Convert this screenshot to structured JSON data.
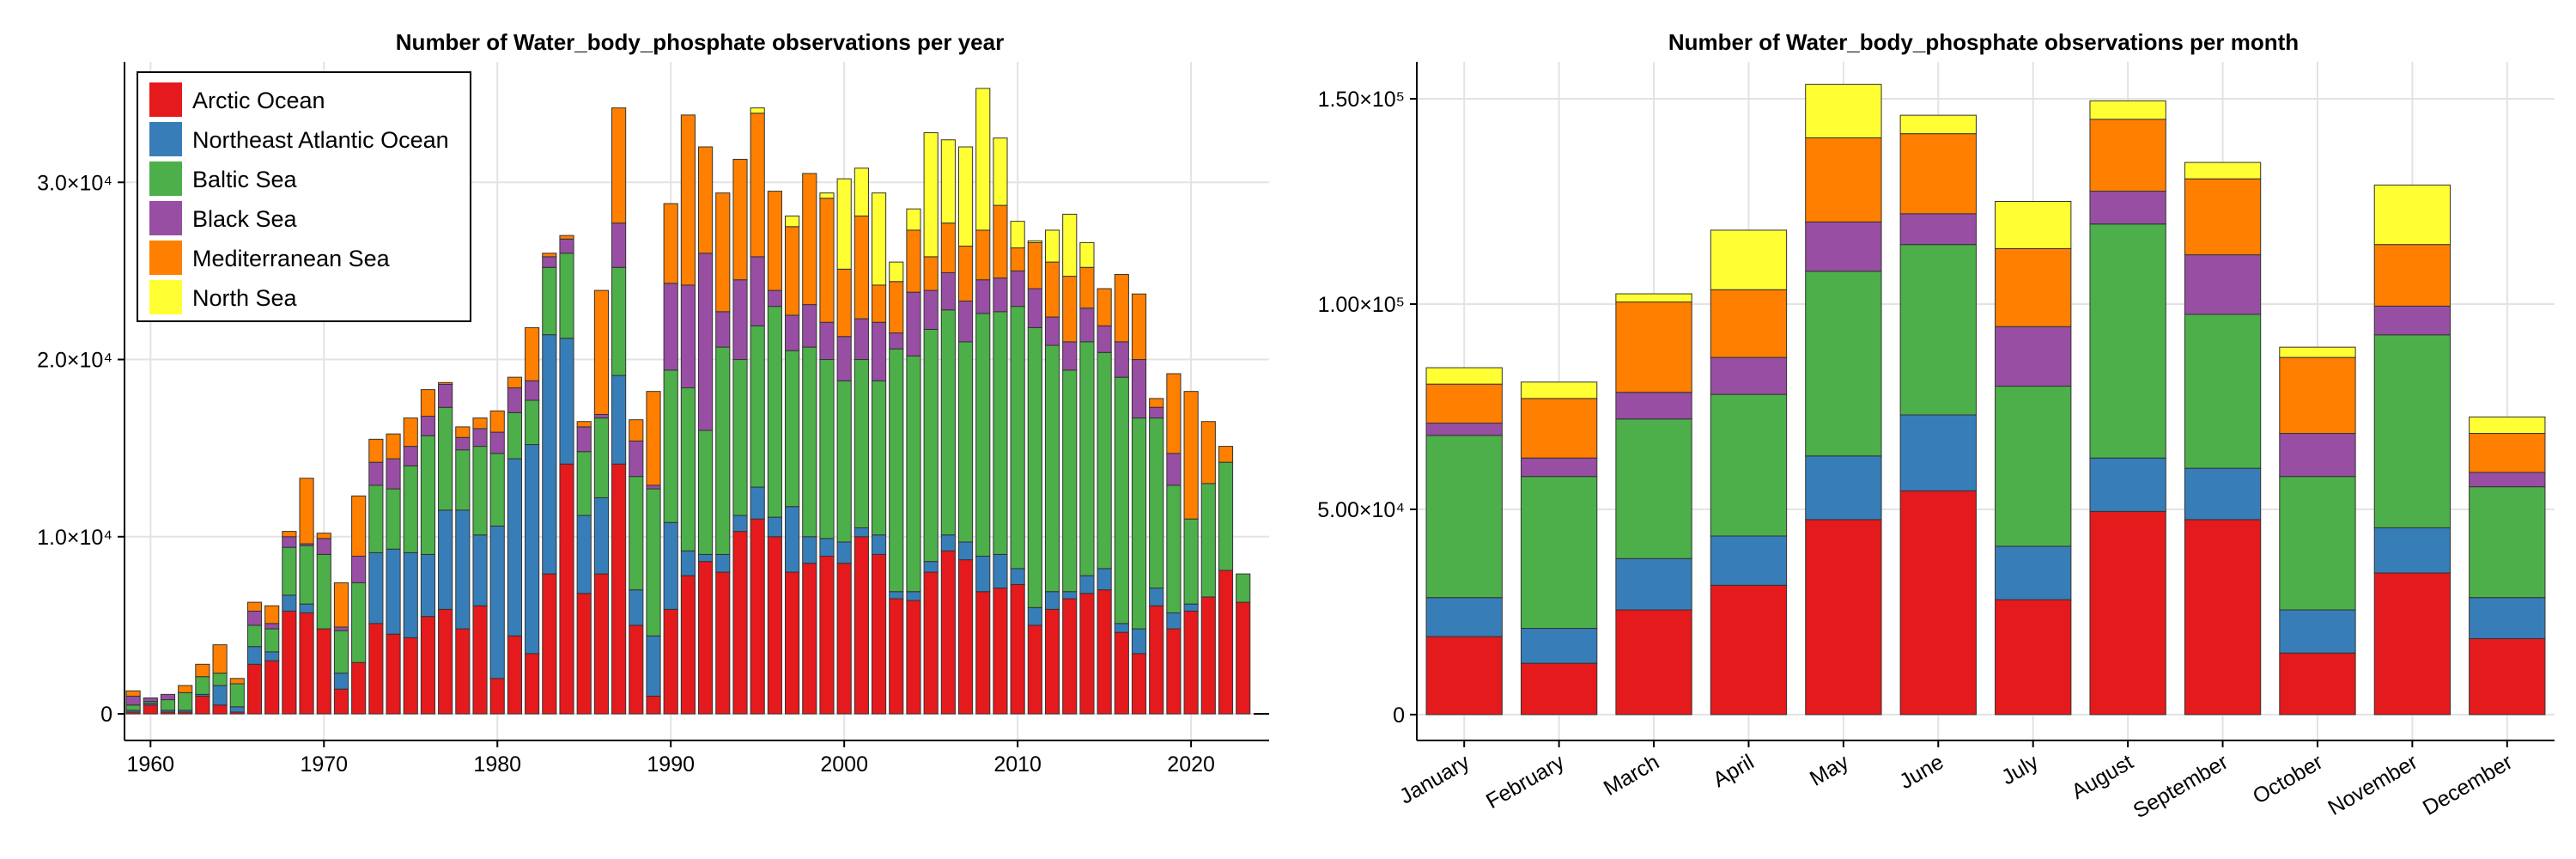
{
  "chart_data": [
    {
      "type": "bar",
      "stacked": true,
      "title": "Number of Water_body_phosphate observations per year",
      "xlabel": "",
      "ylabel": "",
      "x": [
        1959,
        1960,
        1961,
        1962,
        1963,
        1964,
        1965,
        1966,
        1967,
        1968,
        1969,
        1970,
        1971,
        1972,
        1973,
        1974,
        1975,
        1976,
        1977,
        1978,
        1979,
        1980,
        1981,
        1982,
        1983,
        1984,
        1985,
        1986,
        1987,
        1988,
        1989,
        1990,
        1991,
        1992,
        1993,
        1994,
        1995,
        1996,
        1997,
        1998,
        1999,
        2000,
        2001,
        2002,
        2003,
        2004,
        2005,
        2006,
        2007,
        2008,
        2009,
        2010,
        2011,
        2012,
        2013,
        2014,
        2015,
        2016,
        2017,
        2018,
        2019,
        2020,
        2021,
        2022,
        2023
      ],
      "xticks": [
        1960,
        1970,
        1980,
        1990,
        2000,
        2010,
        2020
      ],
      "xticklabels": [
        "1960",
        "1970",
        "1980",
        "1990",
        "2000",
        "2010",
        "2020"
      ],
      "xlim": [
        1958.5,
        2024.5
      ],
      "ylim": [
        -1500,
        36800
      ],
      "yticks": [
        0,
        10000,
        20000,
        30000
      ],
      "yticklabels": [
        "0",
        "1.0×10⁴",
        "2.0×10⁴",
        "3.0×10⁴"
      ],
      "grid": true,
      "legend": "top-left",
      "series": [
        {
          "name": "Arctic Ocean",
          "color": "#e41a1c",
          "values": [
            100,
            500,
            100,
            100,
            1000,
            500,
            100,
            2800,
            3000,
            5800,
            5700,
            4800,
            1400,
            2900,
            5100,
            4500,
            4300,
            5500,
            5900,
            4800,
            6100,
            2000,
            4400,
            3400,
            7900,
            14100,
            6800,
            7900,
            14100,
            5000,
            1000,
            5900,
            7800,
            8600,
            8000,
            10300,
            11000,
            10000,
            8000,
            8500,
            8900,
            8500,
            10000,
            9000,
            6500,
            6400,
            8000,
            9200,
            8700,
            6900,
            7100,
            7300,
            5000,
            5900,
            6500,
            6800,
            7000,
            4600,
            3400,
            6100,
            4800,
            5800,
            6600,
            8100,
            6300
          ]
        },
        {
          "name": "Northeast Atlantic Ocean",
          "color": "#377eb8",
          "values": [
            100,
            100,
            100,
            100,
            100,
            1100,
            300,
            1000,
            500,
            900,
            500,
            0,
            900,
            0,
            4000,
            4800,
            4800,
            3500,
            5600,
            6700,
            4000,
            8600,
            10000,
            11800,
            13500,
            7100,
            4400,
            4300,
            5000,
            2000,
            3400,
            4900,
            1400,
            400,
            1000,
            900,
            1800,
            1100,
            3700,
            1500,
            1000,
            1200,
            500,
            1100,
            400,
            500,
            600,
            900,
            1000,
            2000,
            1900,
            900,
            1000,
            1000,
            400,
            1000,
            1200,
            500,
            1400,
            1000,
            900,
            400,
            0,
            0,
            0
          ]
        },
        {
          "name": "Baltic Sea",
          "color": "#4daf4a",
          "values": [
            300,
            100,
            600,
            1000,
            1000,
            700,
            1300,
            1200,
            1300,
            2700,
            3300,
            4200,
            2400,
            4500,
            3800,
            3400,
            4900,
            6700,
            5800,
            3400,
            5000,
            4100,
            2600,
            2500,
            3800,
            4800,
            3600,
            4500,
            6100,
            6400,
            8300,
            8600,
            9200,
            7000,
            11700,
            8800,
            9100,
            11900,
            8800,
            10700,
            10100,
            9100,
            9500,
            8700,
            13700,
            13300,
            13100,
            12700,
            11300,
            13700,
            13700,
            14800,
            15800,
            13900,
            12500,
            13200,
            12200,
            13900,
            11900,
            9600,
            7200,
            4800,
            6400,
            6100,
            1600
          ]
        },
        {
          "name": "Black Sea",
          "color": "#984ea3",
          "values": [
            500,
            200,
            300,
            0,
            0,
            0,
            0,
            800,
            300,
            600,
            100,
            900,
            200,
            1500,
            1300,
            1700,
            1100,
            1100,
            1300,
            700,
            1000,
            1200,
            1400,
            1100,
            600,
            800,
            1400,
            200,
            2500,
            2000,
            200,
            4900,
            5800,
            10000,
            2000,
            4500,
            3900,
            900,
            2000,
            2400,
            2100,
            2500,
            2300,
            3300,
            900,
            3600,
            2200,
            2100,
            2300,
            1900,
            1900,
            2000,
            2200,
            1600,
            1600,
            1900,
            1500,
            2000,
            3300,
            600,
            1800,
            0,
            0,
            0,
            0
          ]
        },
        {
          "name": "Mediterranean Sea",
          "color": "#ff7f00",
          "values": [
            300,
            0,
            0,
            400,
            700,
            1600,
            300,
            500,
            1000,
            300,
            3700,
            300,
            2500,
            3400,
            1300,
            1400,
            1600,
            1500,
            100,
            600,
            600,
            1200,
            600,
            3000,
            200,
            200,
            300,
            7000,
            6500,
            1200,
            5300,
            4500,
            9600,
            6000,
            6700,
            6800,
            8100,
            5600,
            5000,
            7400,
            7000,
            3800,
            5800,
            2100,
            2900,
            3500,
            1900,
            2800,
            3100,
            2800,
            4100,
            1300,
            2600,
            3100,
            3700,
            2300,
            2100,
            3800,
            3700,
            500,
            4500,
            7200,
            3500,
            900,
            0
          ]
        },
        {
          "name": "North Sea",
          "color": "#ffff33",
          "values": [
            0,
            0,
            0,
            0,
            0,
            0,
            0,
            0,
            0,
            0,
            0,
            0,
            0,
            0,
            0,
            0,
            0,
            0,
            0,
            0,
            0,
            0,
            0,
            0,
            0,
            0,
            0,
            0,
            0,
            0,
            0,
            0,
            0,
            0,
            0,
            0,
            300,
            0,
            600,
            0,
            300,
            5100,
            2700,
            5200,
            1100,
            1200,
            7000,
            4700,
            5600,
            8000,
            3800,
            1500,
            100,
            1800,
            3500,
            1400,
            0,
            0,
            0,
            0,
            0,
            0,
            0,
            0,
            0
          ]
        }
      ]
    },
    {
      "type": "bar",
      "stacked": true,
      "title": "Number of Water_body_phosphate observations per month",
      "xlabel": "",
      "ylabel": "",
      "categories": [
        "January",
        "February",
        "March",
        "April",
        "May",
        "June",
        "July",
        "August",
        "September",
        "October",
        "November",
        "December"
      ],
      "ylim": [
        -6300,
        159000
      ],
      "yticks": [
        0,
        50000,
        100000,
        150000
      ],
      "yticklabels": [
        "0",
        "5.00×10⁴",
        "1.00×10⁵",
        "1.50×10⁵"
      ],
      "grid": true,
      "series": [
        {
          "name": "Arctic Ocean",
          "color": "#e41a1c",
          "values": [
            19000,
            12500,
            25500,
            31500,
            47500,
            54500,
            28000,
            49500,
            47500,
            15000,
            34500,
            18500
          ]
        },
        {
          "name": "Northeast Atlantic Ocean",
          "color": "#377eb8",
          "values": [
            9500,
            8500,
            12500,
            12000,
            15500,
            18500,
            13000,
            13000,
            12500,
            10500,
            11000,
            10000
          ]
        },
        {
          "name": "Baltic Sea",
          "color": "#4daf4a",
          "values": [
            39500,
            37000,
            34000,
            34500,
            45000,
            41500,
            39000,
            57000,
            37500,
            32500,
            47000,
            27000
          ]
        },
        {
          "name": "Black Sea",
          "color": "#984ea3",
          "values": [
            3000,
            4500,
            6500,
            9000,
            12000,
            7500,
            14500,
            8000,
            14500,
            10500,
            7000,
            3500
          ]
        },
        {
          "name": "Mediterranean Sea",
          "color": "#ff7f00",
          "values": [
            9500,
            14500,
            22000,
            16500,
            20500,
            19500,
            19000,
            17500,
            18500,
            18500,
            15000,
            9500
          ]
        },
        {
          "name": "North Sea",
          "color": "#ffff33",
          "values": [
            4000,
            4000,
            2000,
            14500,
            13000,
            4500,
            11500,
            4500,
            4000,
            2500,
            14500,
            4000
          ]
        }
      ]
    }
  ]
}
